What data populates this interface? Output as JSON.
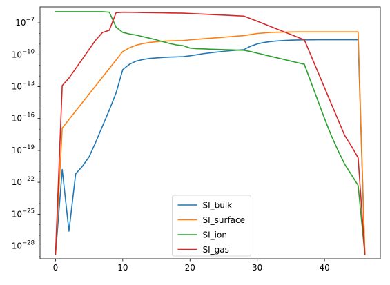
{
  "chart_data": {
    "type": "line",
    "title": "",
    "xlabel": "",
    "ylabel": "",
    "xlim": [
      -2.3,
      48.3
    ],
    "ylim_log10": [
      -29.2,
      -5.5
    ],
    "yscale": "log",
    "grid": false,
    "legend_placement": "lower center",
    "x_ticks": [
      0,
      10,
      20,
      30,
      40
    ],
    "y_ticks": [
      {
        "exp": -28,
        "label": "10",
        "sup": "−28"
      },
      {
        "exp": -25,
        "label": "10",
        "sup": "−25"
      },
      {
        "exp": -22,
        "label": "10",
        "sup": "−22"
      },
      {
        "exp": -19,
        "label": "10",
        "sup": "−19"
      },
      {
        "exp": -16,
        "label": "10",
        "sup": "−16"
      },
      {
        "exp": -13,
        "label": "10",
        "sup": "−13"
      },
      {
        "exp": -10,
        "label": "10",
        "sup": "−10"
      },
      {
        "exp": -7,
        "label": "10",
        "sup": "−7"
      }
    ],
    "series": [
      {
        "name": "SI_bulk",
        "color": "#1f77b4",
        "x": [
          0,
          1,
          2,
          3,
          4,
          5,
          6,
          7,
          8,
          9,
          10,
          11,
          12,
          13,
          14,
          15,
          16,
          17,
          18,
          19,
          20,
          21,
          22,
          23,
          24,
          25,
          26,
          27,
          28,
          29,
          30,
          31,
          32,
          33,
          34,
          35,
          36,
          37,
          38,
          39,
          40,
          41,
          42,
          43,
          44,
          45,
          46
        ],
        "log10_y": [
          -28.8,
          -20.8,
          -26.6,
          -21.2,
          -20.5,
          -19.6,
          -18.2,
          -16.7,
          -15.2,
          -13.6,
          -11.4,
          -10.9,
          -10.6,
          -10.45,
          -10.35,
          -10.3,
          -10.25,
          -10.22,
          -10.2,
          -10.18,
          -10.1,
          -10.0,
          -9.9,
          -9.82,
          -9.75,
          -9.68,
          -9.62,
          -9.57,
          -9.52,
          -9.2,
          -8.98,
          -8.85,
          -8.76,
          -8.7,
          -8.66,
          -8.63,
          -8.61,
          -8.6,
          -8.6,
          -8.59,
          -8.59,
          -8.59,
          -8.59,
          -8.59,
          -8.59,
          -8.59,
          -28.8
        ]
      },
      {
        "name": "SI_surface",
        "color": "#ff7f0e",
        "x": [
          0,
          1,
          2,
          3,
          4,
          5,
          6,
          7,
          8,
          9,
          10,
          11,
          12,
          13,
          14,
          15,
          16,
          17,
          18,
          19,
          20,
          21,
          22,
          23,
          24,
          25,
          26,
          27,
          28,
          29,
          30,
          31,
          32,
          33,
          34,
          35,
          36,
          37,
          38,
          39,
          40,
          41,
          42,
          43,
          44,
          45,
          46
        ],
        "log10_y": [
          -28.8,
          -16.9,
          -16.1,
          -15.3,
          -14.5,
          -13.7,
          -12.9,
          -12.1,
          -11.3,
          -10.5,
          -9.7,
          -9.35,
          -9.1,
          -8.95,
          -8.85,
          -8.78,
          -8.73,
          -8.7,
          -8.68,
          -8.67,
          -8.6,
          -8.55,
          -8.5,
          -8.45,
          -8.4,
          -8.35,
          -8.3,
          -8.25,
          -8.2,
          -8.1,
          -8.0,
          -7.95,
          -7.9,
          -7.88,
          -7.87,
          -7.86,
          -7.85,
          -7.85,
          -7.85,
          -7.85,
          -7.85,
          -7.85,
          -7.85,
          -7.85,
          -7.85,
          -7.85,
          -28.8
        ]
      },
      {
        "name": "SI_ion",
        "color": "#2ca02c",
        "x": [
          0,
          1,
          2,
          3,
          4,
          5,
          6,
          7,
          8,
          9,
          10,
          11,
          12,
          13,
          14,
          15,
          16,
          17,
          18,
          19,
          20,
          21,
          22,
          23,
          24,
          25,
          26,
          27,
          28,
          29,
          30,
          31,
          32,
          33,
          34,
          35,
          36,
          37,
          38,
          39,
          40,
          41,
          42,
          43,
          44,
          45,
          46
        ],
        "log10_y": [
          -5.95,
          -5.95,
          -5.95,
          -5.95,
          -5.95,
          -5.95,
          -5.95,
          -5.95,
          -6.0,
          -7.4,
          -7.9,
          -8.05,
          -8.15,
          -8.3,
          -8.45,
          -8.6,
          -8.78,
          -8.95,
          -9.08,
          -9.15,
          -9.38,
          -9.43,
          -9.45,
          -9.48,
          -9.5,
          -9.52,
          -9.54,
          -9.56,
          -9.58,
          -9.7,
          -9.85,
          -10.0,
          -10.15,
          -10.3,
          -10.45,
          -10.6,
          -10.75,
          -10.9,
          -12.6,
          -14.3,
          -16.0,
          -17.6,
          -19.0,
          -20.3,
          -21.3,
          -22.3,
          -28.8
        ]
      },
      {
        "name": "SI_gas",
        "color": "#d62728",
        "x": [
          0,
          1,
          2,
          3,
          4,
          5,
          6,
          7,
          8,
          9,
          10,
          11,
          12,
          13,
          14,
          15,
          16,
          17,
          18,
          19,
          20,
          21,
          22,
          23,
          24,
          25,
          26,
          27,
          28,
          29,
          30,
          31,
          32,
          33,
          34,
          35,
          36,
          37,
          38,
          39,
          40,
          41,
          42,
          43,
          44,
          45,
          46
        ],
        "log10_y": [
          -28.8,
          -12.9,
          -12.2,
          -11.3,
          -10.4,
          -9.5,
          -8.6,
          -7.9,
          -7.7,
          -6.05,
          -6.0,
          -6.01,
          -6.02,
          -6.03,
          -6.04,
          -6.05,
          -6.06,
          -6.07,
          -6.08,
          -6.09,
          -6.12,
          -6.15,
          -6.18,
          -6.21,
          -6.24,
          -6.27,
          -6.3,
          -6.33,
          -6.36,
          -6.6,
          -6.85,
          -7.1,
          -7.35,
          -7.6,
          -7.85,
          -8.1,
          -8.35,
          -8.6,
          -10.1,
          -11.6,
          -13.1,
          -14.6,
          -16.1,
          -17.6,
          -18.6,
          -19.7,
          -28.8
        ]
      }
    ]
  }
}
